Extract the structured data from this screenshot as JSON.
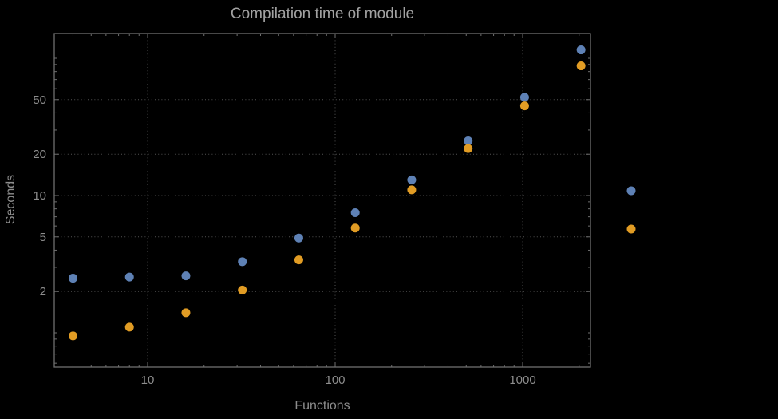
{
  "colors": {
    "background": "#000000",
    "frame": "#6f6f6f",
    "grid": "#545454",
    "text": "#8d8d8d",
    "title": "#a2a2a2",
    "series_blue": "#5e81b5",
    "series_orange": "#e19c24"
  },
  "chart_data": {
    "type": "scatter",
    "title": "Compilation time of module",
    "xlabel": "Functions",
    "ylabel": "Seconds",
    "x_scale": "log",
    "y_scale": "log",
    "x_range": [
      3.2,
      2300
    ],
    "y_range": [
      0.57,
      150
    ],
    "grid": true,
    "legend_position": "right-outside",
    "x": [
      4,
      8,
      16,
      32,
      64,
      128,
      256,
      512,
      1024,
      2048
    ],
    "series": [
      {
        "name": "blue",
        "color": "#5e81b5",
        "values": [
          2.5,
          2.55,
          2.6,
          3.3,
          4.9,
          7.5,
          13,
          25,
          52,
          115
        ]
      },
      {
        "name": "orange",
        "color": "#e19c24",
        "values": [
          0.95,
          1.1,
          1.4,
          2.05,
          3.4,
          5.8,
          11,
          22,
          45,
          88
        ]
      }
    ],
    "x_ticks": [
      {
        "v": 10,
        "label": "10"
      },
      {
        "v": 100,
        "label": "100"
      },
      {
        "v": 1000,
        "label": "1000"
      }
    ],
    "y_ticks": [
      {
        "v": 2,
        "label": "2"
      },
      {
        "v": 5,
        "label": "5"
      },
      {
        "v": 10,
        "label": "10"
      },
      {
        "v": 20,
        "label": "20"
      },
      {
        "v": 50,
        "label": "50"
      }
    ]
  }
}
